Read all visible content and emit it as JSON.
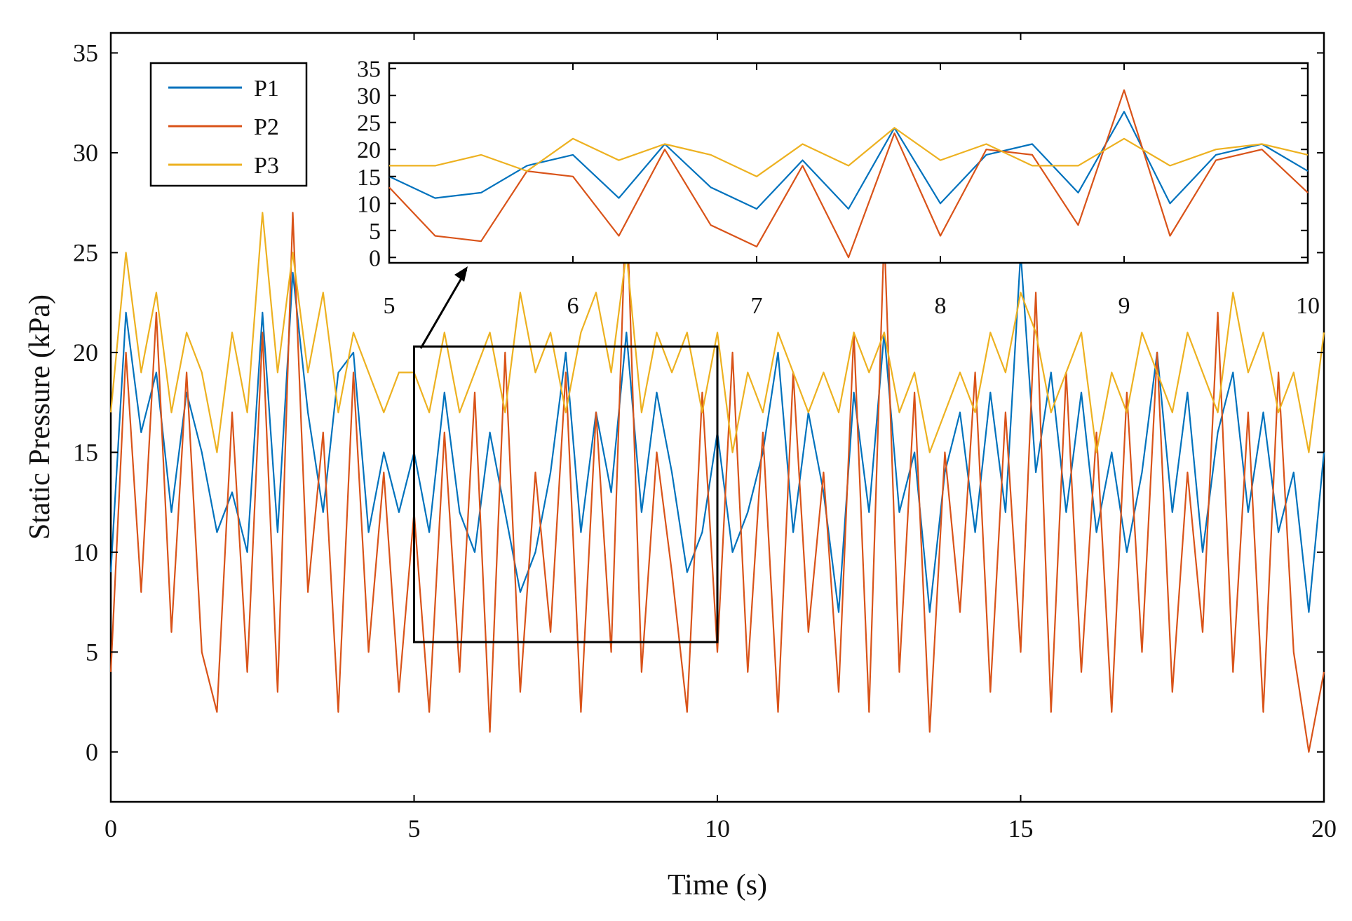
{
  "chart_data": {
    "type": "line",
    "xlabel": "Time (s)",
    "ylabel": "Static Pressure (kPa)",
    "xlim": [
      0,
      20
    ],
    "ylim": [
      -2.5,
      36
    ],
    "xticks": [
      "0",
      "5",
      "10",
      "15",
      "20"
    ],
    "yticks": [
      "0",
      "5",
      "10",
      "15",
      "20",
      "25",
      "30",
      "35"
    ],
    "grid": false,
    "legend_position": "top-left",
    "colors": {
      "P1": "#0072BD",
      "P2": "#D95319",
      "P3": "#EDB120"
    },
    "series": [
      {
        "name": "P1",
        "x": [
          0,
          0.25,
          0.5,
          0.75,
          1,
          1.25,
          1.5,
          1.75,
          2,
          2.25,
          2.5,
          2.75,
          3,
          3.25,
          3.5,
          3.75,
          4,
          4.25,
          4.5,
          4.75,
          5,
          5.25,
          5.5,
          5.75,
          6,
          6.25,
          6.5,
          6.75,
          7,
          7.25,
          7.5,
          7.75,
          8,
          8.25,
          8.5,
          8.75,
          9,
          9.25,
          9.5,
          9.75,
          10,
          10.25,
          10.5,
          10.75,
          11,
          11.25,
          11.5,
          11.75,
          12,
          12.25,
          12.5,
          12.75,
          13,
          13.25,
          13.5,
          13.75,
          14,
          14.25,
          14.5,
          14.75,
          15,
          15.25,
          15.5,
          15.75,
          16,
          16.25,
          16.5,
          16.75,
          17,
          17.25,
          17.5,
          17.75,
          18,
          18.25,
          18.5,
          18.75,
          19,
          19.25,
          19.5,
          19.75,
          20
        ],
        "values": [
          9,
          22,
          16,
          19,
          12,
          18,
          15,
          11,
          13,
          10,
          22,
          11,
          24,
          17,
          12,
          19,
          20,
          11,
          15,
          12,
          15,
          11,
          18,
          12,
          10,
          16,
          12,
          8,
          10,
          14,
          20,
          11,
          17,
          13,
          21,
          12,
          18,
          14,
          9,
          11,
          16,
          10,
          12,
          15,
          20,
          11,
          17,
          13,
          7,
          18,
          12,
          21,
          12,
          15,
          7,
          14,
          17,
          11,
          18,
          12,
          25,
          14,
          19,
          12,
          18,
          11,
          15,
          10,
          14,
          20,
          12,
          18,
          10,
          16,
          19,
          12,
          17,
          11,
          14,
          7,
          15
        ]
      },
      {
        "name": "P2",
        "x": [
          0,
          0.25,
          0.5,
          0.75,
          1,
          1.25,
          1.5,
          1.75,
          2,
          2.25,
          2.5,
          2.75,
          3,
          3.25,
          3.5,
          3.75,
          4,
          4.25,
          4.5,
          4.75,
          5,
          5.25,
          5.5,
          5.75,
          6,
          6.25,
          6.5,
          6.75,
          7,
          7.25,
          7.5,
          7.75,
          8,
          8.25,
          8.5,
          8.75,
          9,
          9.25,
          9.5,
          9.75,
          10,
          10.25,
          10.5,
          10.75,
          11,
          11.25,
          11.5,
          11.75,
          12,
          12.25,
          12.5,
          12.75,
          13,
          13.25,
          13.5,
          13.75,
          14,
          14.25,
          14.5,
          14.75,
          15,
          15.25,
          15.5,
          15.75,
          16,
          16.25,
          16.5,
          16.75,
          17,
          17.25,
          17.5,
          17.75,
          18,
          18.25,
          18.5,
          18.75,
          19,
          19.25,
          19.5,
          19.75,
          20
        ],
        "values": [
          4,
          20,
          8,
          22,
          6,
          19,
          5,
          2,
          17,
          4,
          21,
          3,
          27,
          8,
          16,
          2,
          19,
          5,
          14,
          3,
          12,
          2,
          16,
          4,
          18,
          1,
          20,
          3,
          14,
          6,
          19,
          2,
          17,
          5,
          28,
          4,
          15,
          9,
          2,
          18,
          5,
          20,
          4,
          16,
          2,
          19,
          6,
          14,
          3,
          21,
          2,
          26,
          4,
          18,
          1,
          15,
          7,
          19,
          3,
          17,
          5,
          23,
          2,
          19,
          4,
          16,
          2,
          18,
          5,
          20,
          3,
          14,
          6,
          22,
          4,
          17,
          2,
          19,
          5,
          0,
          4
        ]
      },
      {
        "name": "P3",
        "x": [
          0,
          0.25,
          0.5,
          0.75,
          1,
          1.25,
          1.5,
          1.75,
          2,
          2.25,
          2.5,
          2.75,
          3,
          3.25,
          3.5,
          3.75,
          4,
          4.25,
          4.5,
          4.75,
          5,
          5.25,
          5.5,
          5.75,
          6,
          6.25,
          6.5,
          6.75,
          7,
          7.25,
          7.5,
          7.75,
          8,
          8.25,
          8.5,
          8.75,
          9,
          9.25,
          9.5,
          9.75,
          10,
          10.25,
          10.5,
          10.75,
          11,
          11.25,
          11.5,
          11.75,
          12,
          12.25,
          12.5,
          12.75,
          13,
          13.25,
          13.5,
          13.75,
          14,
          14.25,
          14.5,
          14.75,
          15,
          15.25,
          15.5,
          15.75,
          16,
          16.25,
          16.5,
          16.75,
          17,
          17.25,
          17.5,
          17.75,
          18,
          18.25,
          18.5,
          18.75,
          19,
          19.25,
          19.5,
          19.75,
          20
        ],
        "values": [
          17,
          25,
          19,
          23,
          17,
          21,
          19,
          15,
          21,
          17,
          27,
          19,
          25,
          19,
          23,
          17,
          21,
          19,
          17,
          19,
          19,
          17,
          21,
          17,
          19,
          21,
          17,
          23,
          19,
          21,
          17,
          21,
          23,
          19,
          25,
          17,
          21,
          19,
          21,
          17,
          21,
          15,
          19,
          17,
          21,
          19,
          17,
          19,
          17,
          21,
          19,
          21,
          17,
          19,
          15,
          17,
          19,
          17,
          21,
          19,
          23,
          21,
          17,
          19,
          21,
          15,
          19,
          17,
          21,
          19,
          17,
          21,
          19,
          17,
          23,
          19,
          21,
          17,
          19,
          15,
          21
        ]
      }
    ],
    "zoom_region": {
      "x": [
        5,
        10
      ],
      "y": [
        5.5,
        20.3
      ]
    },
    "inset": {
      "xlim": [
        5,
        10
      ],
      "ylim": [
        -1,
        36
      ],
      "xticks": [
        "5",
        "6",
        "7",
        "8",
        "9",
        "10"
      ],
      "yticks": [
        "0",
        "5",
        "10",
        "15",
        "20",
        "25",
        "30",
        "35"
      ],
      "series": [
        {
          "name": "P1",
          "x": [
            5,
            5.25,
            5.5,
            5.75,
            6,
            6.25,
            6.5,
            6.75,
            7,
            7.25,
            7.5,
            7.75,
            8,
            8.25,
            8.5,
            8.75,
            9,
            9.25,
            9.5,
            9.75,
            10
          ],
          "values": [
            15,
            11,
            12,
            17,
            19,
            11,
            21,
            13,
            9,
            18,
            9,
            24,
            10,
            19,
            21,
            12,
            27,
            10,
            19,
            21,
            16
          ]
        },
        {
          "name": "P2",
          "x": [
            5,
            5.25,
            5.5,
            5.75,
            6,
            6.25,
            6.5,
            6.75,
            7,
            7.25,
            7.5,
            7.75,
            8,
            8.25,
            8.5,
            8.75,
            9,
            9.25,
            9.5,
            9.75,
            10
          ],
          "values": [
            13,
            4,
            3,
            16,
            15,
            4,
            20,
            6,
            2,
            17,
            0,
            23,
            4,
            20,
            19,
            6,
            31,
            4,
            18,
            20,
            12
          ]
        },
        {
          "name": "P3",
          "x": [
            5,
            5.25,
            5.5,
            5.75,
            6,
            6.25,
            6.5,
            6.75,
            7,
            7.25,
            7.5,
            7.75,
            8,
            8.25,
            8.5,
            8.75,
            9,
            9.25,
            9.5,
            9.75,
            10
          ],
          "values": [
            17,
            17,
            19,
            16,
            22,
            18,
            21,
            19,
            15,
            21,
            17,
            24,
            18,
            21,
            17,
            17,
            22,
            17,
            20,
            21,
            19
          ]
        }
      ]
    }
  }
}
